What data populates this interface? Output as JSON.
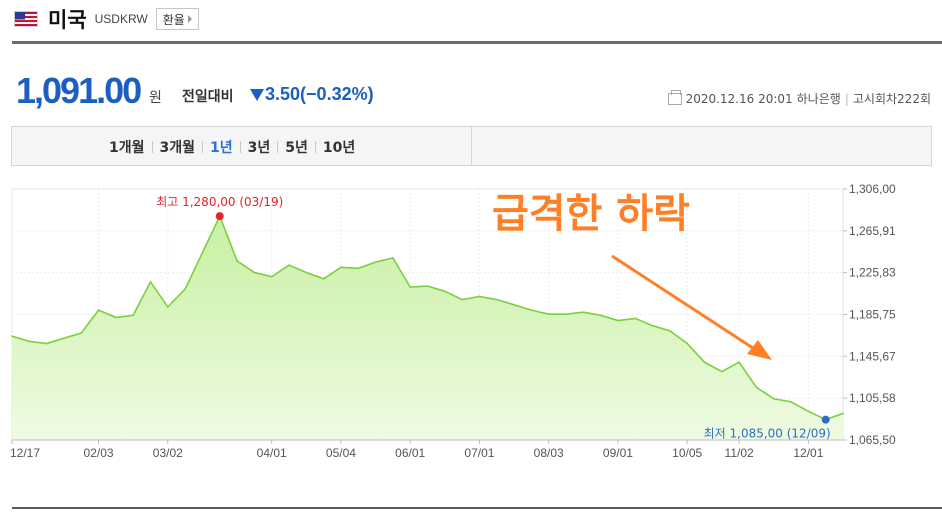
{
  "header": {
    "country": "미국",
    "code": "USDKRW",
    "rate_button": "환율",
    "flag_icon": "us-flag-icon"
  },
  "price": {
    "value": "1,091.00",
    "unit": "원",
    "compare_label": "전일대비",
    "change": "3.50",
    "change_pct": "(−0.32%)",
    "direction": "down",
    "color": "#1b5fc2"
  },
  "meta": {
    "datetime": "2020.12.16 20:01",
    "bank": "하나은행",
    "round": "고시회차222회"
  },
  "period_tabs": {
    "items": [
      "1개월",
      "3개월",
      "1년",
      "3년",
      "5년",
      "10년"
    ],
    "active": "1년"
  },
  "chart_data": {
    "type": "area",
    "ylim": [
      1065.5,
      1306.0
    ],
    "y_ticks": [
      "1,306,00",
      "1,265,91",
      "1,225,83",
      "1,185,75",
      "1,145,67",
      "1,105,58",
      "1,065,50"
    ],
    "x_tick_labels": [
      "12/17",
      "02/03",
      "03/02",
      "04/01",
      "05/04",
      "06/01",
      "07/01",
      "08/03",
      "09/01",
      "10/05",
      "11/02",
      "12/01"
    ],
    "x": [
      "12/17",
      "12/26",
      "01/06",
      "01/15",
      "01/22",
      "02/03",
      "02/10",
      "02/17",
      "02/24",
      "03/02",
      "03/09",
      "03/13",
      "03/19",
      "03/23",
      "03/31",
      "04/01",
      "04/08",
      "04/16",
      "04/24",
      "05/04",
      "05/12",
      "05/20",
      "05/28",
      "06/01",
      "06/08",
      "06/15",
      "06/22",
      "07/01",
      "07/10",
      "07/20",
      "07/30",
      "08/03",
      "08/12",
      "08/21",
      "08/31",
      "09/01",
      "09/10",
      "09/18",
      "09/28",
      "10/05",
      "10/14",
      "10/23",
      "11/02",
      "11/11",
      "11/20",
      "11/30",
      "12/01",
      "12/09",
      "12/16"
    ],
    "values": [
      1165,
      1160,
      1158,
      1163,
      1168,
      1190,
      1183,
      1185,
      1217,
      1193,
      1210,
      1245,
      1280,
      1237,
      1226,
      1222,
      1233,
      1226,
      1220,
      1231,
      1230,
      1236,
      1240,
      1212,
      1213,
      1208,
      1200,
      1203,
      1200,
      1195,
      1190,
      1186,
      1186,
      1188,
      1185,
      1180,
      1182,
      1175,
      1170,
      1158,
      1140,
      1131,
      1140,
      1116,
      1105,
      1102,
      1093,
      1085,
      1091
    ],
    "series_color": "#7ccf3c",
    "fill_top": "#c8f0a2",
    "fill_bottom": "#eefbe3",
    "grid": true,
    "max_annotation": {
      "text": "최고 1,280,00 (03/19)",
      "x": "03/19",
      "value": 1280.0,
      "color": "#e8232a"
    },
    "min_annotation": {
      "text": "최저 1,085,00 (12/09)",
      "x": "12/09",
      "value": 1085.0,
      "color": "#2f6ec4"
    },
    "annotation": {
      "text": "급격한 하락",
      "color": "#ff7f27"
    }
  }
}
